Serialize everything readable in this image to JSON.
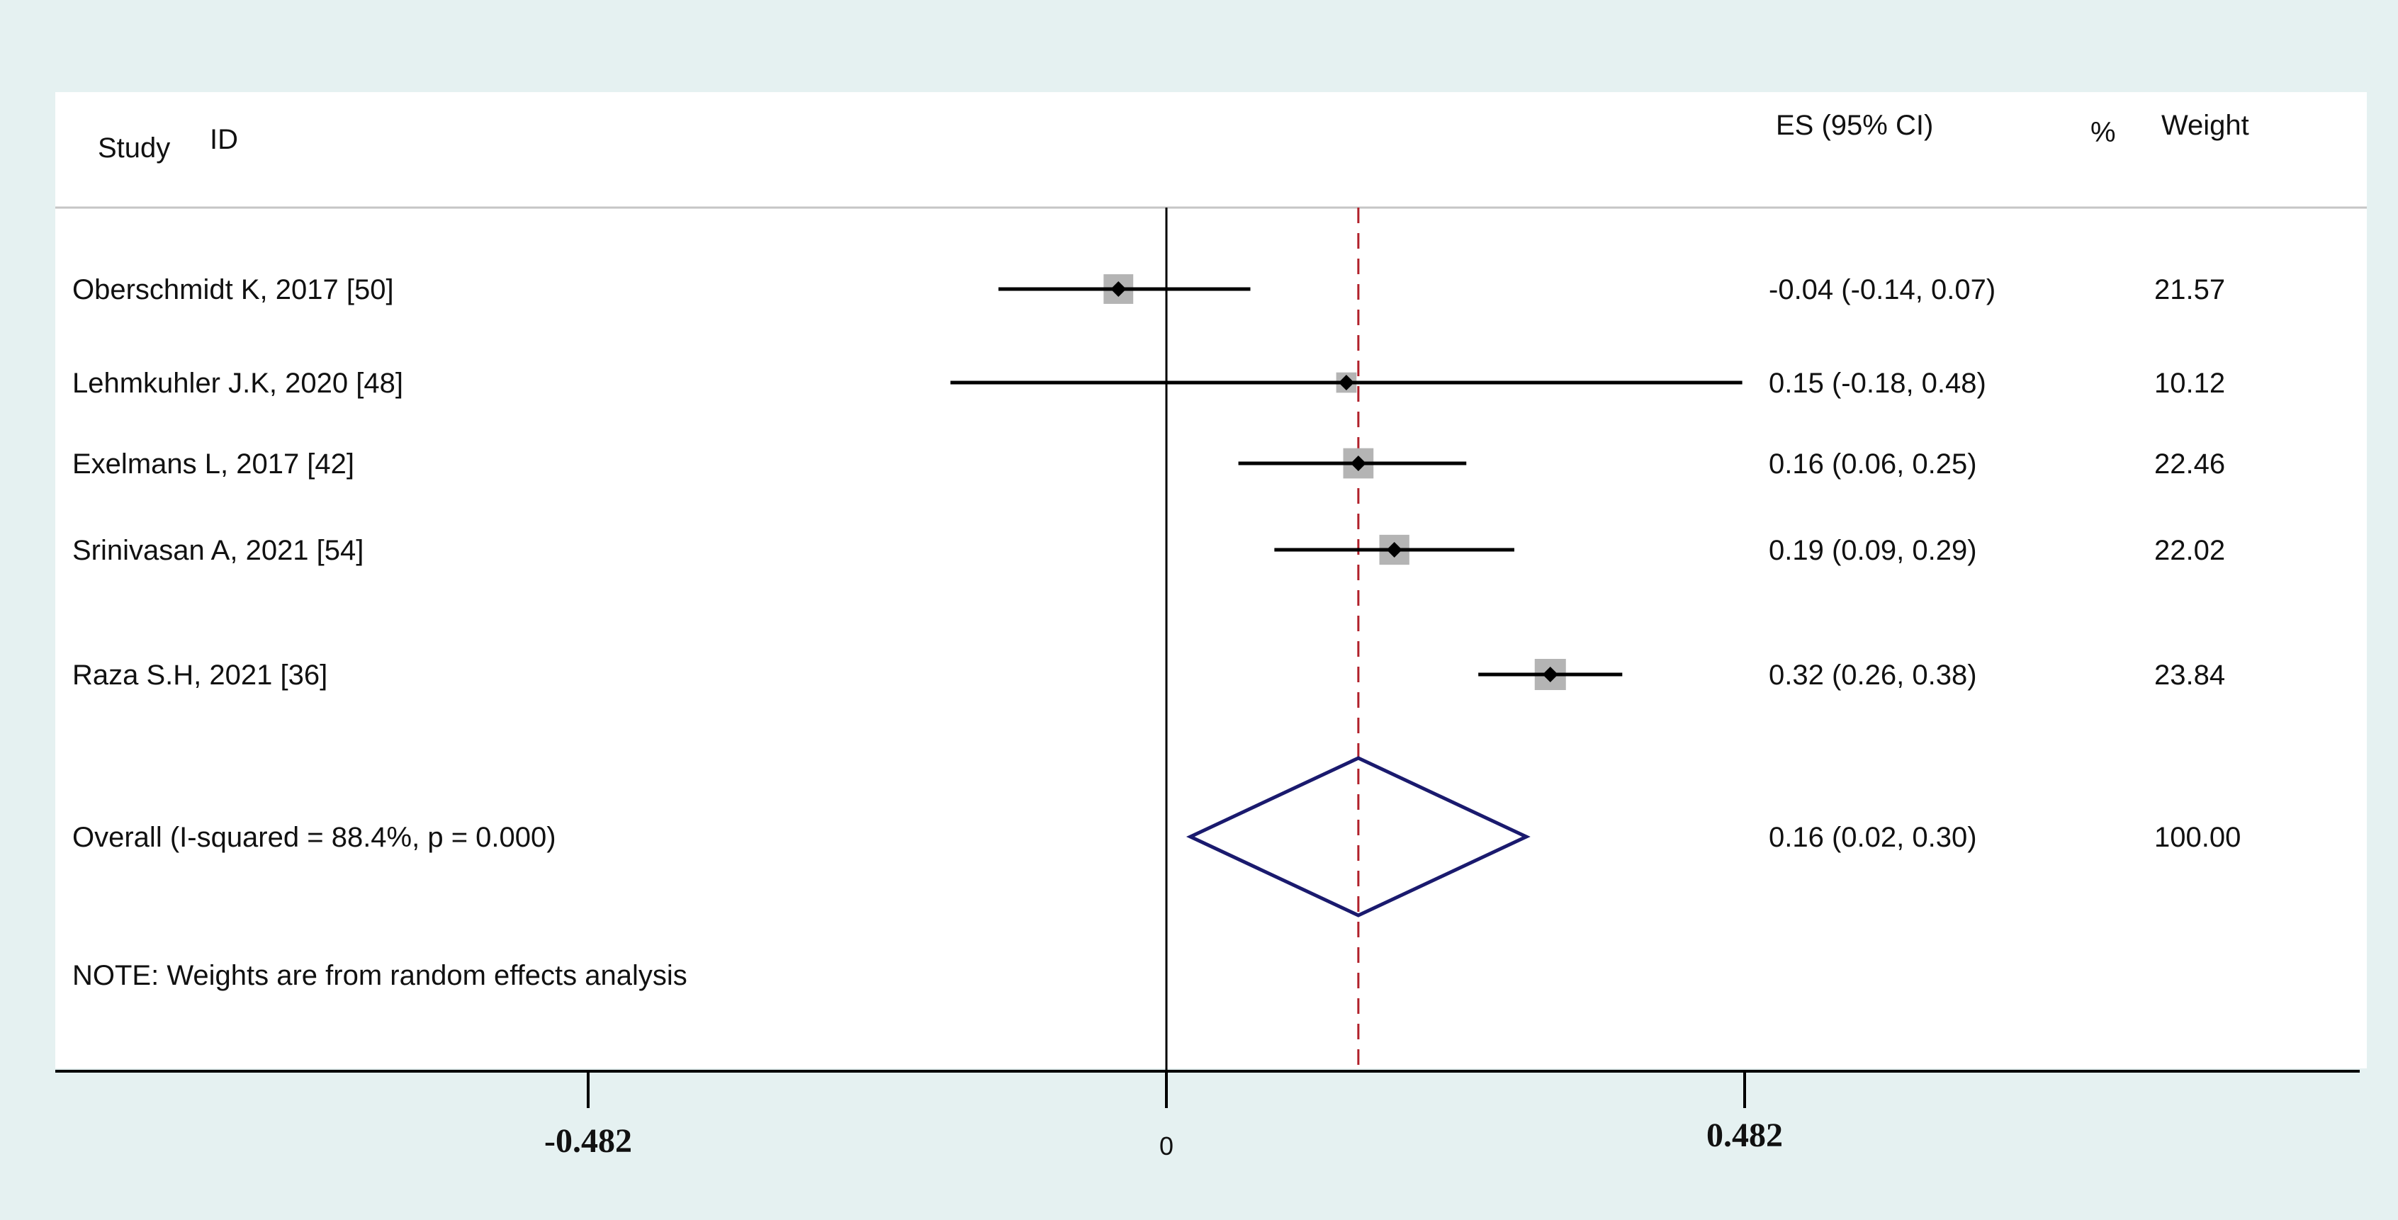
{
  "chart_data": {
    "type": "forest",
    "header": {
      "study": "Study",
      "id": "ID",
      "es": "ES (95% CI)",
      "pct": "%",
      "weight": "Weight"
    },
    "studies": [
      {
        "label": "Oberschmidt K, 2017 [50]",
        "es": -0.04,
        "lo": -0.14,
        "hi": 0.07,
        "es_text": "-0.04 (-0.14, 0.07)",
        "weight": 21.57,
        "weight_text": "21.57"
      },
      {
        "label": "Lehmkuhler J.K, 2020 [48]",
        "es": 0.15,
        "lo": -0.18,
        "hi": 0.48,
        "es_text": "0.15 (-0.18, 0.48)",
        "weight": 10.12,
        "weight_text": "10.12"
      },
      {
        "label": "Exelmans L, 2017 [42]",
        "es": 0.16,
        "lo": 0.06,
        "hi": 0.25,
        "es_text": "0.16 (0.06, 0.25)",
        "weight": 22.46,
        "weight_text": "22.46"
      },
      {
        "label": "Srinivasan A, 2021 [54]",
        "es": 0.19,
        "lo": 0.09,
        "hi": 0.29,
        "es_text": "0.19 (0.09, 0.29)",
        "weight": 22.02,
        "weight_text": "22.02"
      },
      {
        "label": "Raza S.H, 2021 [36]",
        "es": 0.32,
        "lo": 0.26,
        "hi": 0.38,
        "es_text": "0.32 (0.26, 0.38)",
        "weight": 23.84,
        "weight_text": "23.84"
      }
    ],
    "overall": {
      "label": "Overall  (I-squared = 88.4%, p = 0.000)",
      "es": 0.16,
      "lo": 0.02,
      "hi": 0.3,
      "es_text": "0.16 (0.02, 0.30)",
      "weight_text": "100.00"
    },
    "note": "NOTE: Weights are from random effects analysis",
    "x_ticks": [
      {
        "value": -0.482,
        "label": "-0.482",
        "style": "serif"
      },
      {
        "value": 0,
        "label": "0",
        "style": "sans"
      },
      {
        "value": 0.482,
        "label": "0.482",
        "style": "serif"
      }
    ],
    "xlim": [
      -0.963,
      0.963
    ],
    "null_line": 0,
    "colors": {
      "background": "#e5f1f1",
      "panel": "#ffffff",
      "ci_line": "#000000",
      "weight_box": "#b4b4b4",
      "point": "#000000",
      "overall_diamond": "#1a1a6e",
      "overall_line": "#b0202a",
      "null_line": "#000000"
    }
  }
}
